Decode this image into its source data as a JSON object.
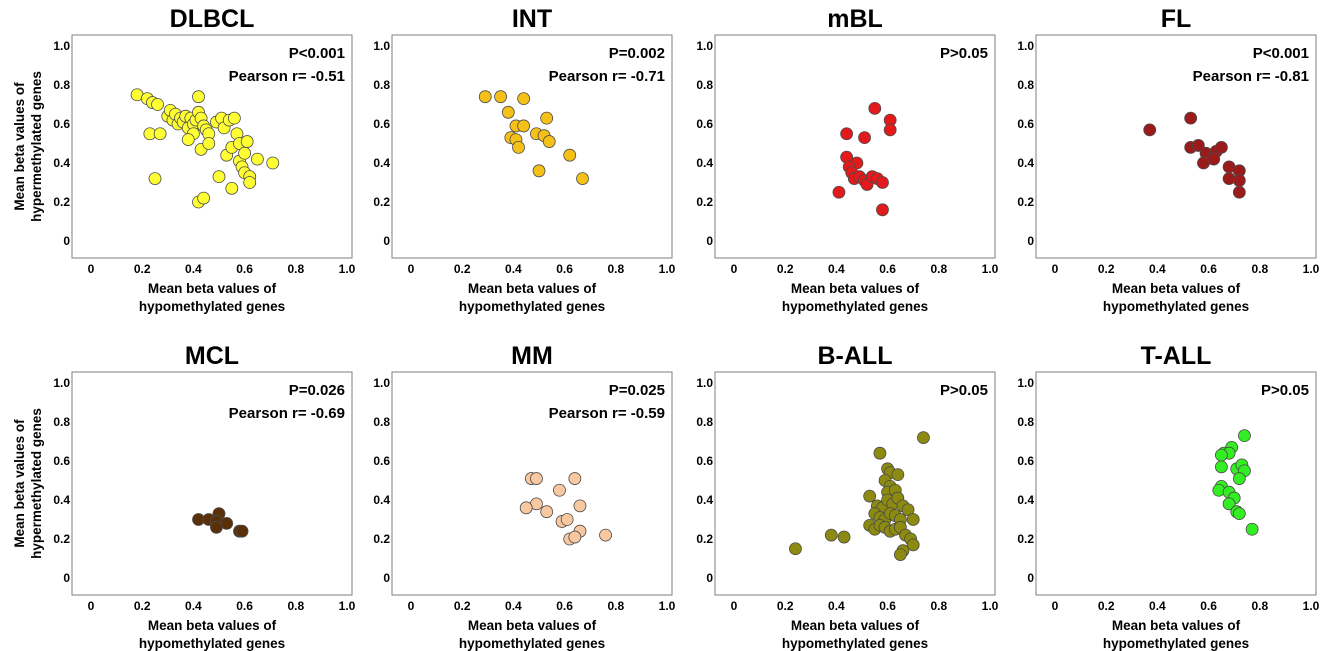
{
  "figure": {
    "x_label_line1": "Mean beta values of",
    "x_label_line2": "hypomethylated genes",
    "y_label_line1": "Mean beta values of",
    "y_label_line2": "hypermethylated genes"
  },
  "chart_data": [
    {
      "type": "scatter",
      "title": "DLBCL",
      "stats": [
        "P<0.001",
        "Pearson r= -0.51"
      ],
      "color": "#ffff33",
      "xticks": [
        "0",
        "0.2",
        "0.4",
        "0.6",
        "0.8",
        "1.0"
      ],
      "yticks": [
        "0",
        "0.2",
        "0.4",
        "0.6",
        "0.8",
        "1.0"
      ],
      "xlim": [
        0,
        1
      ],
      "ylim": [
        0,
        1
      ],
      "points": [
        [
          0.18,
          0.75
        ],
        [
          0.22,
          0.73
        ],
        [
          0.24,
          0.71
        ],
        [
          0.26,
          0.7
        ],
        [
          0.23,
          0.55
        ],
        [
          0.27,
          0.55
        ],
        [
          0.25,
          0.32
        ],
        [
          0.3,
          0.64
        ],
        [
          0.31,
          0.67
        ],
        [
          0.32,
          0.62
        ],
        [
          0.33,
          0.65
        ],
        [
          0.34,
          0.6
        ],
        [
          0.35,
          0.63
        ],
        [
          0.36,
          0.61
        ],
        [
          0.37,
          0.64
        ],
        [
          0.38,
          0.58
        ],
        [
          0.39,
          0.63
        ],
        [
          0.4,
          0.6
        ],
        [
          0.4,
          0.55
        ],
        [
          0.41,
          0.62
        ],
        [
          0.42,
          0.66
        ],
        [
          0.42,
          0.74
        ],
        [
          0.43,
          0.63
        ],
        [
          0.44,
          0.59
        ],
        [
          0.45,
          0.57
        ],
        [
          0.46,
          0.55
        ],
        [
          0.43,
          0.47
        ],
        [
          0.46,
          0.5
        ],
        [
          0.38,
          0.52
        ],
        [
          0.42,
          0.2
        ],
        [
          0.44,
          0.22
        ],
        [
          0.49,
          0.61
        ],
        [
          0.5,
          0.33
        ],
        [
          0.51,
          0.63
        ],
        [
          0.52,
          0.58
        ],
        [
          0.53,
          0.44
        ],
        [
          0.54,
          0.62
        ],
        [
          0.55,
          0.48
        ],
        [
          0.56,
          0.63
        ],
        [
          0.57,
          0.55
        ],
        [
          0.58,
          0.5
        ],
        [
          0.55,
          0.27
        ],
        [
          0.58,
          0.41
        ],
        [
          0.59,
          0.38
        ],
        [
          0.6,
          0.45
        ],
        [
          0.61,
          0.51
        ],
        [
          0.6,
          0.35
        ],
        [
          0.62,
          0.33
        ],
        [
          0.65,
          0.42
        ],
        [
          0.71,
          0.4
        ],
        [
          0.62,
          0.3
        ]
      ]
    },
    {
      "type": "scatter",
      "title": "INT",
      "stats": [
        "P=0.002",
        "Pearson r= -0.71"
      ],
      "color": "#f5c018",
      "xticks": [
        "0",
        "0.2",
        "0.4",
        "0.6",
        "0.8",
        "1.0"
      ],
      "yticks": [
        "0",
        "0.2",
        "0.4",
        "0.6",
        "0.8",
        "1.0"
      ],
      "xlim": [
        0,
        1
      ],
      "ylim": [
        0,
        1
      ],
      "points": [
        [
          0.29,
          0.74
        ],
        [
          0.35,
          0.74
        ],
        [
          0.44,
          0.73
        ],
        [
          0.38,
          0.66
        ],
        [
          0.41,
          0.59
        ],
        [
          0.44,
          0.59
        ],
        [
          0.53,
          0.63
        ],
        [
          0.39,
          0.53
        ],
        [
          0.41,
          0.52
        ],
        [
          0.42,
          0.48
        ],
        [
          0.49,
          0.55
        ],
        [
          0.52,
          0.54
        ],
        [
          0.54,
          0.51
        ],
        [
          0.62,
          0.44
        ],
        [
          0.5,
          0.36
        ],
        [
          0.67,
          0.32
        ]
      ]
    },
    {
      "type": "scatter",
      "title": "mBL",
      "stats": [
        "P>0.05"
      ],
      "color": "#e31a1c",
      "xticks": [
        "0",
        "0.2",
        "0.4",
        "0.6",
        "0.8",
        "1.0"
      ],
      "yticks": [
        "0",
        "0.2",
        "0.4",
        "0.6",
        "0.8",
        "1.0"
      ],
      "xlim": [
        0,
        1
      ],
      "ylim": [
        0,
        1
      ],
      "points": [
        [
          0.55,
          0.68
        ],
        [
          0.61,
          0.62
        ],
        [
          0.61,
          0.57
        ],
        [
          0.44,
          0.55
        ],
        [
          0.51,
          0.53
        ],
        [
          0.44,
          0.43
        ],
        [
          0.48,
          0.4
        ],
        [
          0.45,
          0.38
        ],
        [
          0.46,
          0.35
        ],
        [
          0.47,
          0.32
        ],
        [
          0.49,
          0.33
        ],
        [
          0.51,
          0.31
        ],
        [
          0.52,
          0.29
        ],
        [
          0.54,
          0.33
        ],
        [
          0.56,
          0.32
        ],
        [
          0.58,
          0.3
        ],
        [
          0.41,
          0.25
        ],
        [
          0.58,
          0.16
        ]
      ]
    },
    {
      "type": "scatter",
      "title": "FL",
      "stats": [
        "P<0.001",
        "Pearson r= -0.81"
      ],
      "color": "#9b1b1b",
      "xticks": [
        "0",
        "0.2",
        "0.4",
        "0.6",
        "0.8",
        "1.0"
      ],
      "yticks": [
        "0",
        "0.2",
        "0.4",
        "0.6",
        "0.8",
        "1.0"
      ],
      "xlim": [
        0,
        1
      ],
      "ylim": [
        0,
        1
      ],
      "points": [
        [
          0.37,
          0.57
        ],
        [
          0.53,
          0.63
        ],
        [
          0.53,
          0.48
        ],
        [
          0.56,
          0.49
        ],
        [
          0.59,
          0.45
        ],
        [
          0.63,
          0.46
        ],
        [
          0.65,
          0.48
        ],
        [
          0.58,
          0.4
        ],
        [
          0.62,
          0.42
        ],
        [
          0.68,
          0.38
        ],
        [
          0.72,
          0.36
        ],
        [
          0.68,
          0.32
        ],
        [
          0.72,
          0.31
        ],
        [
          0.72,
          0.25
        ]
      ]
    },
    {
      "type": "scatter",
      "title": "MCL",
      "stats": [
        "P=0.026",
        "Pearson r= -0.69"
      ],
      "color": "#5a3008",
      "xticks": [
        "0",
        "0.2",
        "0.4",
        "0.6",
        "0.8",
        "1.0"
      ],
      "yticks": [
        "0",
        "0.2",
        "0.4",
        "0.6",
        "0.8",
        "1.0"
      ],
      "xlim": [
        0,
        1
      ],
      "ylim": [
        0,
        1
      ],
      "points": [
        [
          0.42,
          0.3
        ],
        [
          0.46,
          0.3
        ],
        [
          0.5,
          0.33
        ],
        [
          0.49,
          0.29
        ],
        [
          0.53,
          0.28
        ],
        [
          0.49,
          0.26
        ],
        [
          0.58,
          0.24
        ],
        [
          0.59,
          0.24
        ]
      ]
    },
    {
      "type": "scatter",
      "title": "MM",
      "stats": [
        "P=0.025",
        "Pearson r= -0.59"
      ],
      "color": "#f8c9a0",
      "xticks": [
        "0",
        "0.2",
        "0.4",
        "0.6",
        "0.8",
        "1.0"
      ],
      "yticks": [
        "0",
        "0.2",
        "0.4",
        "0.6",
        "0.8",
        "1.0"
      ],
      "xlim": [
        0,
        1
      ],
      "ylim": [
        0,
        1
      ],
      "points": [
        [
          0.47,
          0.51
        ],
        [
          0.49,
          0.51
        ],
        [
          0.64,
          0.51
        ],
        [
          0.58,
          0.45
        ],
        [
          0.49,
          0.38
        ],
        [
          0.66,
          0.37
        ],
        [
          0.45,
          0.36
        ],
        [
          0.53,
          0.34
        ],
        [
          0.59,
          0.29
        ],
        [
          0.61,
          0.3
        ],
        [
          0.66,
          0.24
        ],
        [
          0.62,
          0.2
        ],
        [
          0.64,
          0.21
        ],
        [
          0.76,
          0.22
        ]
      ]
    },
    {
      "type": "scatter",
      "title": "B-ALL",
      "stats": [
        "P>0.05"
      ],
      "color": "#8c8a10",
      "xticks": [
        "0",
        "0.2",
        "0.4",
        "0.6",
        "0.8",
        "1.0"
      ],
      "yticks": [
        "0",
        "0.2",
        "0.4",
        "0.6",
        "0.8",
        "1.0"
      ],
      "xlim": [
        0,
        1
      ],
      "ylim": [
        0,
        1
      ],
      "points": [
        [
          0.74,
          0.72
        ],
        [
          0.57,
          0.64
        ],
        [
          0.6,
          0.56
        ],
        [
          0.61,
          0.54
        ],
        [
          0.64,
          0.53
        ],
        [
          0.59,
          0.5
        ],
        [
          0.61,
          0.47
        ],
        [
          0.53,
          0.42
        ],
        [
          0.6,
          0.44
        ],
        [
          0.63,
          0.45
        ],
        [
          0.56,
          0.37
        ],
        [
          0.58,
          0.36
        ],
        [
          0.6,
          0.4
        ],
        [
          0.62,
          0.38
        ],
        [
          0.64,
          0.41
        ],
        [
          0.66,
          0.37
        ],
        [
          0.68,
          0.35
        ],
        [
          0.7,
          0.3
        ],
        [
          0.55,
          0.33
        ],
        [
          0.57,
          0.31
        ],
        [
          0.59,
          0.3
        ],
        [
          0.61,
          0.33
        ],
        [
          0.63,
          0.32
        ],
        [
          0.65,
          0.3
        ],
        [
          0.53,
          0.27
        ],
        [
          0.55,
          0.25
        ],
        [
          0.57,
          0.27
        ],
        [
          0.59,
          0.26
        ],
        [
          0.61,
          0.24
        ],
        [
          0.63,
          0.25
        ],
        [
          0.65,
          0.26
        ],
        [
          0.67,
          0.22
        ],
        [
          0.69,
          0.2
        ],
        [
          0.7,
          0.17
        ],
        [
          0.66,
          0.14
        ],
        [
          0.65,
          0.12
        ],
        [
          0.38,
          0.22
        ],
        [
          0.43,
          0.21
        ],
        [
          0.24,
          0.15
        ]
      ]
    },
    {
      "type": "scatter",
      "title": "T-ALL",
      "stats": [
        "P>0.05"
      ],
      "color": "#33ee22",
      "xticks": [
        "0",
        "0.2",
        "0.4",
        "0.6",
        "0.8",
        "1.0"
      ],
      "yticks": [
        "0",
        "0.2",
        "0.4",
        "0.6",
        "0.8",
        "1.0"
      ],
      "xlim": [
        0,
        1
      ],
      "ylim": [
        0,
        1
      ],
      "points": [
        [
          0.74,
          0.73
        ],
        [
          0.69,
          0.67
        ],
        [
          0.66,
          0.64
        ],
        [
          0.68,
          0.64
        ],
        [
          0.65,
          0.63
        ],
        [
          0.65,
          0.57
        ],
        [
          0.71,
          0.56
        ],
        [
          0.73,
          0.58
        ],
        [
          0.74,
          0.55
        ],
        [
          0.72,
          0.51
        ],
        [
          0.65,
          0.47
        ],
        [
          0.64,
          0.45
        ],
        [
          0.68,
          0.44
        ],
        [
          0.7,
          0.41
        ],
        [
          0.68,
          0.38
        ],
        [
          0.71,
          0.34
        ],
        [
          0.72,
          0.33
        ],
        [
          0.77,
          0.25
        ]
      ]
    }
  ]
}
